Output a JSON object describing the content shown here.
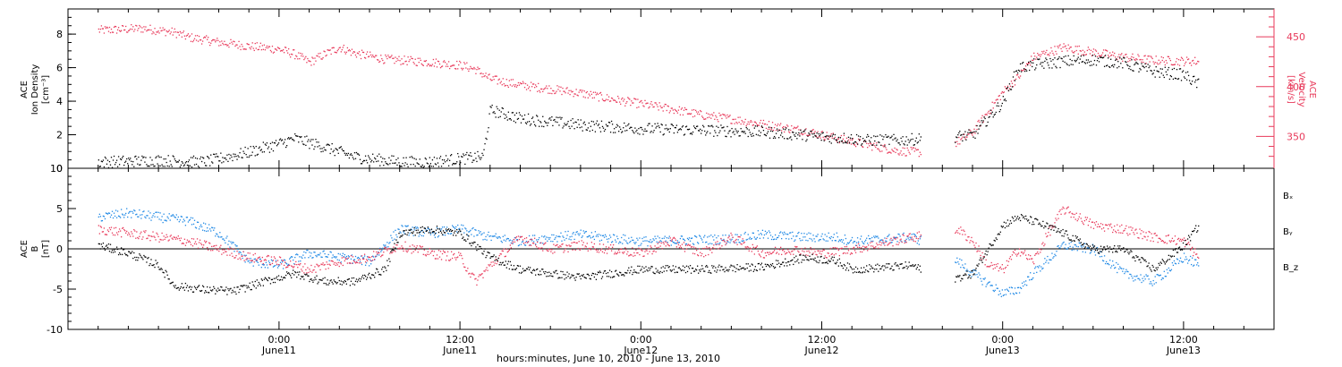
{
  "colors": {
    "black": "#000000",
    "blue": "#1e88e5",
    "red": "#e8395a"
  },
  "chart_data": [
    {
      "type": "scatter",
      "left_axis": {
        "label_lines": [
          "ACE",
          "Ion Density",
          "[cm⁻³]"
        ],
        "ylim": [
          0,
          9.5
        ],
        "ticks": [
          "0",
          "2",
          "4",
          "6",
          "8"
        ]
      },
      "right_axis": {
        "label_lines": [
          "ACE",
          "Velocity",
          "[km/s]"
        ],
        "ylim": [
          318,
          478
        ],
        "ticks": [
          "350",
          "400",
          "450"
        ]
      },
      "series": [
        {
          "name": "Ion Density",
          "axis": "left",
          "color": "#000000",
          "points": [
            [
              -12,
              0.4
            ],
            [
              -8,
              0.5
            ],
            [
              -5,
              0.4
            ],
            [
              -2,
              1.0
            ],
            [
              0,
              1.5
            ],
            [
              1,
              1.8
            ],
            [
              3,
              1.3
            ],
            [
              5,
              0.7
            ],
            [
              6,
              0.6
            ],
            [
              7,
              0.5
            ],
            [
              8,
              0.4
            ],
            [
              10,
              0.4
            ],
            [
              12,
              0.6
            ],
            [
              13.5,
              0.7
            ],
            [
              14,
              3.5
            ],
            [
              16,
              3.0
            ],
            [
              18,
              2.8
            ],
            [
              20,
              2.6
            ],
            [
              24,
              2.4
            ],
            [
              28,
              2.3
            ],
            [
              32,
              2.2
            ],
            [
              35,
              2.0
            ],
            [
              36,
              1.9
            ],
            [
              38,
              1.8
            ],
            [
              39,
              1.7
            ],
            [
              41,
              1.7
            ],
            [
              43,
              1.8
            ],
            [
              46,
              2.0
            ],
            [
              48,
              4.0
            ],
            [
              49,
              6.0
            ],
            [
              50,
              6.2
            ],
            [
              52,
              6.4
            ],
            [
              54,
              6.5
            ],
            [
              56,
              6.3
            ],
            [
              58,
              5.8
            ],
            [
              60,
              5.6
            ],
            [
              61,
              5.0
            ]
          ]
        },
        {
          "name": "Velocity",
          "axis": "right",
          "color": "#e8395a",
          "points": [
            [
              -12,
              457
            ],
            [
              -9,
              459
            ],
            [
              -7,
              455
            ],
            [
              -6,
              450
            ],
            [
              -4,
              445
            ],
            [
              -2,
              441
            ],
            [
              0,
              438
            ],
            [
              1,
              433
            ],
            [
              2,
              425
            ],
            [
              3,
              433
            ],
            [
              4,
              440
            ],
            [
              5,
              434
            ],
            [
              7,
              428
            ],
            [
              10,
              425
            ],
            [
              12,
              422
            ],
            [
              13,
              418
            ],
            [
              14,
              408
            ],
            [
              16,
              402
            ],
            [
              18,
              398
            ],
            [
              20,
              394
            ],
            [
              22,
              388
            ],
            [
              24,
              383
            ],
            [
              26,
              378
            ],
            [
              28,
              372
            ],
            [
              30,
              368
            ],
            [
              32,
              363
            ],
            [
              34,
              358
            ],
            [
              35,
              356
            ],
            [
              36,
              352
            ],
            [
              39,
              342
            ],
            [
              41,
              336
            ],
            [
              43,
              334
            ],
            [
              45,
              345
            ],
            [
              46,
              355
            ],
            [
              47,
              375
            ],
            [
              48,
              395
            ],
            [
              49,
              410
            ],
            [
              50,
              430
            ],
            [
              52,
              440
            ],
            [
              54,
              435
            ],
            [
              56,
              430
            ],
            [
              58,
              427
            ],
            [
              60,
              426
            ],
            [
              61,
              426
            ]
          ]
        }
      ]
    },
    {
      "type": "scatter",
      "left_axis": {
        "label_lines": [
          "ACE",
          "B",
          "[nT]"
        ],
        "ylim": [
          -10,
          10
        ],
        "ticks": [
          "-10",
          "-5",
          "0",
          "5",
          "10"
        ]
      },
      "legend": [
        "Bₓ",
        "Bᵧ",
        "B_z"
      ],
      "series": [
        {
          "name": "Bₓ",
          "color": "#000000",
          "points": [
            [
              -12,
              0.5
            ],
            [
              -10,
              -0.5
            ],
            [
              -8,
              -2.0
            ],
            [
              -7,
              -4.5
            ],
            [
              -5,
              -5.0
            ],
            [
              -3,
              -5.2
            ],
            [
              -1,
              -4.0
            ],
            [
              1,
              -3.0
            ],
            [
              3,
              -4.0
            ],
            [
              5,
              -4.0
            ],
            [
              6,
              -3.2
            ],
            [
              7,
              -2.5
            ],
            [
              8,
              2.0
            ],
            [
              10,
              2.5
            ],
            [
              12,
              2.0
            ],
            [
              14,
              -1.0
            ],
            [
              16,
              -2.5
            ],
            [
              18,
              -3.0
            ],
            [
              20,
              -3.5
            ],
            [
              24,
              -2.5
            ],
            [
              28,
              -2.5
            ],
            [
              32,
              -2.2
            ],
            [
              35,
              -1.0
            ],
            [
              37,
              -1.5
            ],
            [
              38,
              -2.5
            ],
            [
              42,
              -2.0
            ],
            [
              44,
              -4.0
            ],
            [
              46,
              -3.0
            ],
            [
              48,
              3.0
            ],
            [
              49,
              4.0
            ],
            [
              50,
              3.5
            ],
            [
              52,
              2.0
            ],
            [
              54,
              0.0
            ],
            [
              56,
              0.0
            ],
            [
              58,
              -2.5
            ],
            [
              60,
              0.5
            ],
            [
              61,
              3.0
            ]
          ]
        },
        {
          "name": "Bᵧ",
          "color": "#1e88e5",
          "points": [
            [
              -12,
              4.0
            ],
            [
              -10,
              4.5
            ],
            [
              -8,
              4.0
            ],
            [
              -6,
              3.5
            ],
            [
              -4,
              2.0
            ],
            [
              -2,
              -1.5
            ],
            [
              0,
              -2.0
            ],
            [
              2,
              -0.5
            ],
            [
              4,
              -1.0
            ],
            [
              6,
              -1.5
            ],
            [
              8,
              2.5
            ],
            [
              10,
              2.0
            ],
            [
              12,
              2.5
            ],
            [
              14,
              1.5
            ],
            [
              16,
              1.0
            ],
            [
              18,
              1.5
            ],
            [
              20,
              1.8
            ],
            [
              24,
              1.0
            ],
            [
              28,
              1.2
            ],
            [
              30,
              1.3
            ],
            [
              32,
              1.8
            ],
            [
              35,
              1.5
            ],
            [
              37,
              1.5
            ],
            [
              38,
              1.0
            ],
            [
              42,
              1.5
            ],
            [
              44,
              0.0
            ],
            [
              46,
              -3.0
            ],
            [
              48,
              -5.5
            ],
            [
              49,
              -5.0
            ],
            [
              50,
              -3.0
            ],
            [
              52,
              0.5
            ],
            [
              54,
              0.0
            ],
            [
              56,
              -3.0
            ],
            [
              58,
              -4.0
            ],
            [
              60,
              -1.0
            ],
            [
              61,
              -2.0
            ]
          ]
        },
        {
          "name": "B_z",
          "color": "#e8395a",
          "points": [
            [
              -12,
              2.5
            ],
            [
              -10,
              2.0
            ],
            [
              -8,
              1.5
            ],
            [
              -6,
              1.0
            ],
            [
              -4,
              0.0
            ],
            [
              -2,
              -1.0
            ],
            [
              0,
              -1.5
            ],
            [
              2,
              -2.5
            ],
            [
              4,
              -1.5
            ],
            [
              6,
              -1.0
            ],
            [
              8,
              0.5
            ],
            [
              10,
              -0.5
            ],
            [
              12,
              -1.0
            ],
            [
              13,
              -4.0
            ],
            [
              14,
              -2.0
            ],
            [
              16,
              1.5
            ],
            [
              18,
              0.0
            ],
            [
              20,
              0.5
            ],
            [
              24,
              -0.5
            ],
            [
              26,
              1.0
            ],
            [
              28,
              -0.5
            ],
            [
              30,
              1.5
            ],
            [
              32,
              -0.5
            ],
            [
              34,
              0.0
            ],
            [
              36,
              -0.5
            ],
            [
              38,
              0.0
            ],
            [
              42,
              1.5
            ],
            [
              44,
              2.0
            ],
            [
              45,
              2.5
            ],
            [
              46,
              1.0
            ],
            [
              47,
              -2.0
            ],
            [
              48,
              -2.5
            ],
            [
              49,
              0.0
            ],
            [
              50,
              -1.5
            ],
            [
              51,
              2.0
            ],
            [
              52,
              5.0
            ],
            [
              54,
              3.0
            ],
            [
              56,
              2.5
            ],
            [
              58,
              1.5
            ],
            [
              60,
              1.0
            ],
            [
              61,
              -1.0
            ]
          ]
        }
      ]
    }
  ],
  "x_axis": {
    "xlim": [
      -14,
      66
    ],
    "major_ticks": [
      0,
      12,
      24,
      36,
      48,
      60
    ],
    "tick_labels": [
      {
        "time": "0:00",
        "date": "June11"
      },
      {
        "time": "12:00",
        "date": "June11"
      },
      {
        "time": "0:00",
        "date": "June12"
      },
      {
        "time": "12:00",
        "date": "June12"
      },
      {
        "time": "0:00",
        "date": "June13"
      },
      {
        "time": "12:00",
        "date": "June13"
      }
    ],
    "xlabel": "hours:minutes, June 10, 2010 - June 13, 2010",
    "data_gap": [
      42.6,
      44.8
    ]
  }
}
